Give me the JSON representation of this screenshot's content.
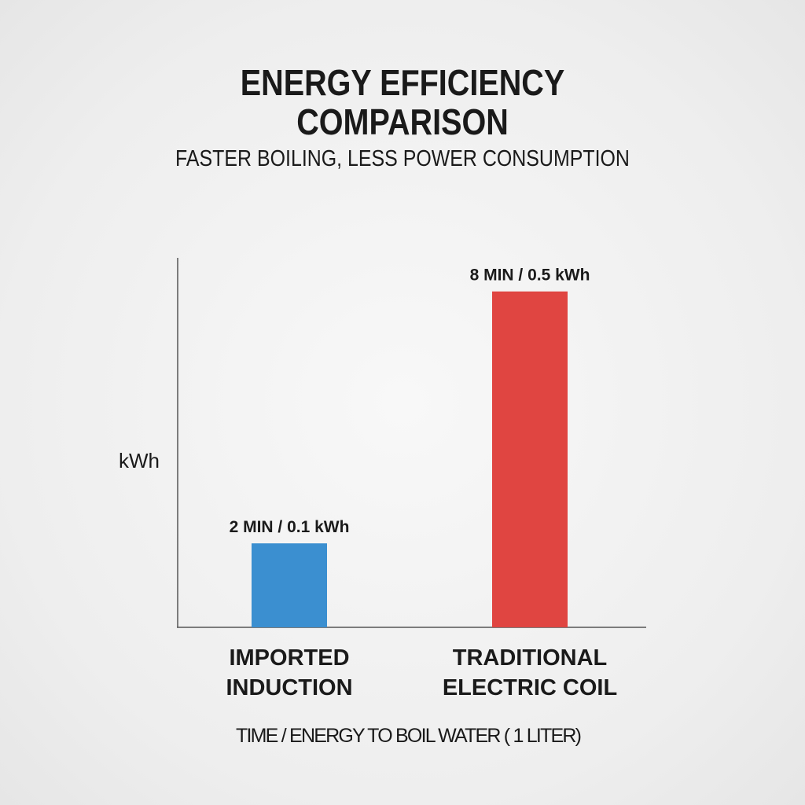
{
  "chart_data": {
    "type": "bar",
    "title_lines": [
      "ENERGY EFFICIENCY",
      "COMPARISON"
    ],
    "subtitle": "FASTER BOILING, LESS POWER CONSUMPTION",
    "categories": [
      [
        "IMPORTED",
        "INDUCTION"
      ],
      [
        "TRADITIONAL",
        "ELECTRIC COIL"
      ]
    ],
    "minutes": [
      2,
      8
    ],
    "kwh": [
      0.1,
      0.5
    ],
    "data_labels": [
      "2 MIN / 0.1 kWh",
      "8 MIN / 0.5 kWh"
    ],
    "colors": [
      "#3b8fd0",
      "#e04541"
    ],
    "xlabel": "TIME / ENERGY TO BOIL WATER ( 1 LITER)",
    "ylabel": "kWh",
    "ylim": [
      0,
      8.8
    ],
    "grid": false
  }
}
